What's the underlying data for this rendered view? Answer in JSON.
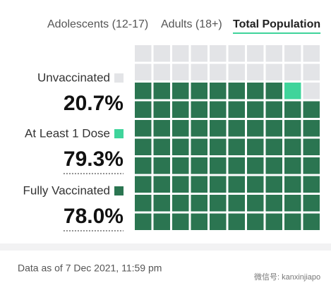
{
  "tabs": [
    "Adolescents (12-17)",
    "Adults (18+)",
    "Total Population"
  ],
  "active_tab": 2,
  "chart_data": {
    "type": "waffle",
    "categories": [
      "Unvaccinated",
      "At Least 1 Dose",
      "Fully Vaccinated"
    ],
    "values": [
      20.7,
      79.3,
      78.0
    ],
    "value_labels": [
      "20.7%",
      "79.3%",
      "78.0%"
    ],
    "colors": [
      "#e3e4e7",
      "#3fd49b",
      "#2b7551"
    ]
  },
  "footer": "Data as of 7 Dec 2021, 11:59 pm",
  "watermark": "微信号: kanxinjiapo"
}
